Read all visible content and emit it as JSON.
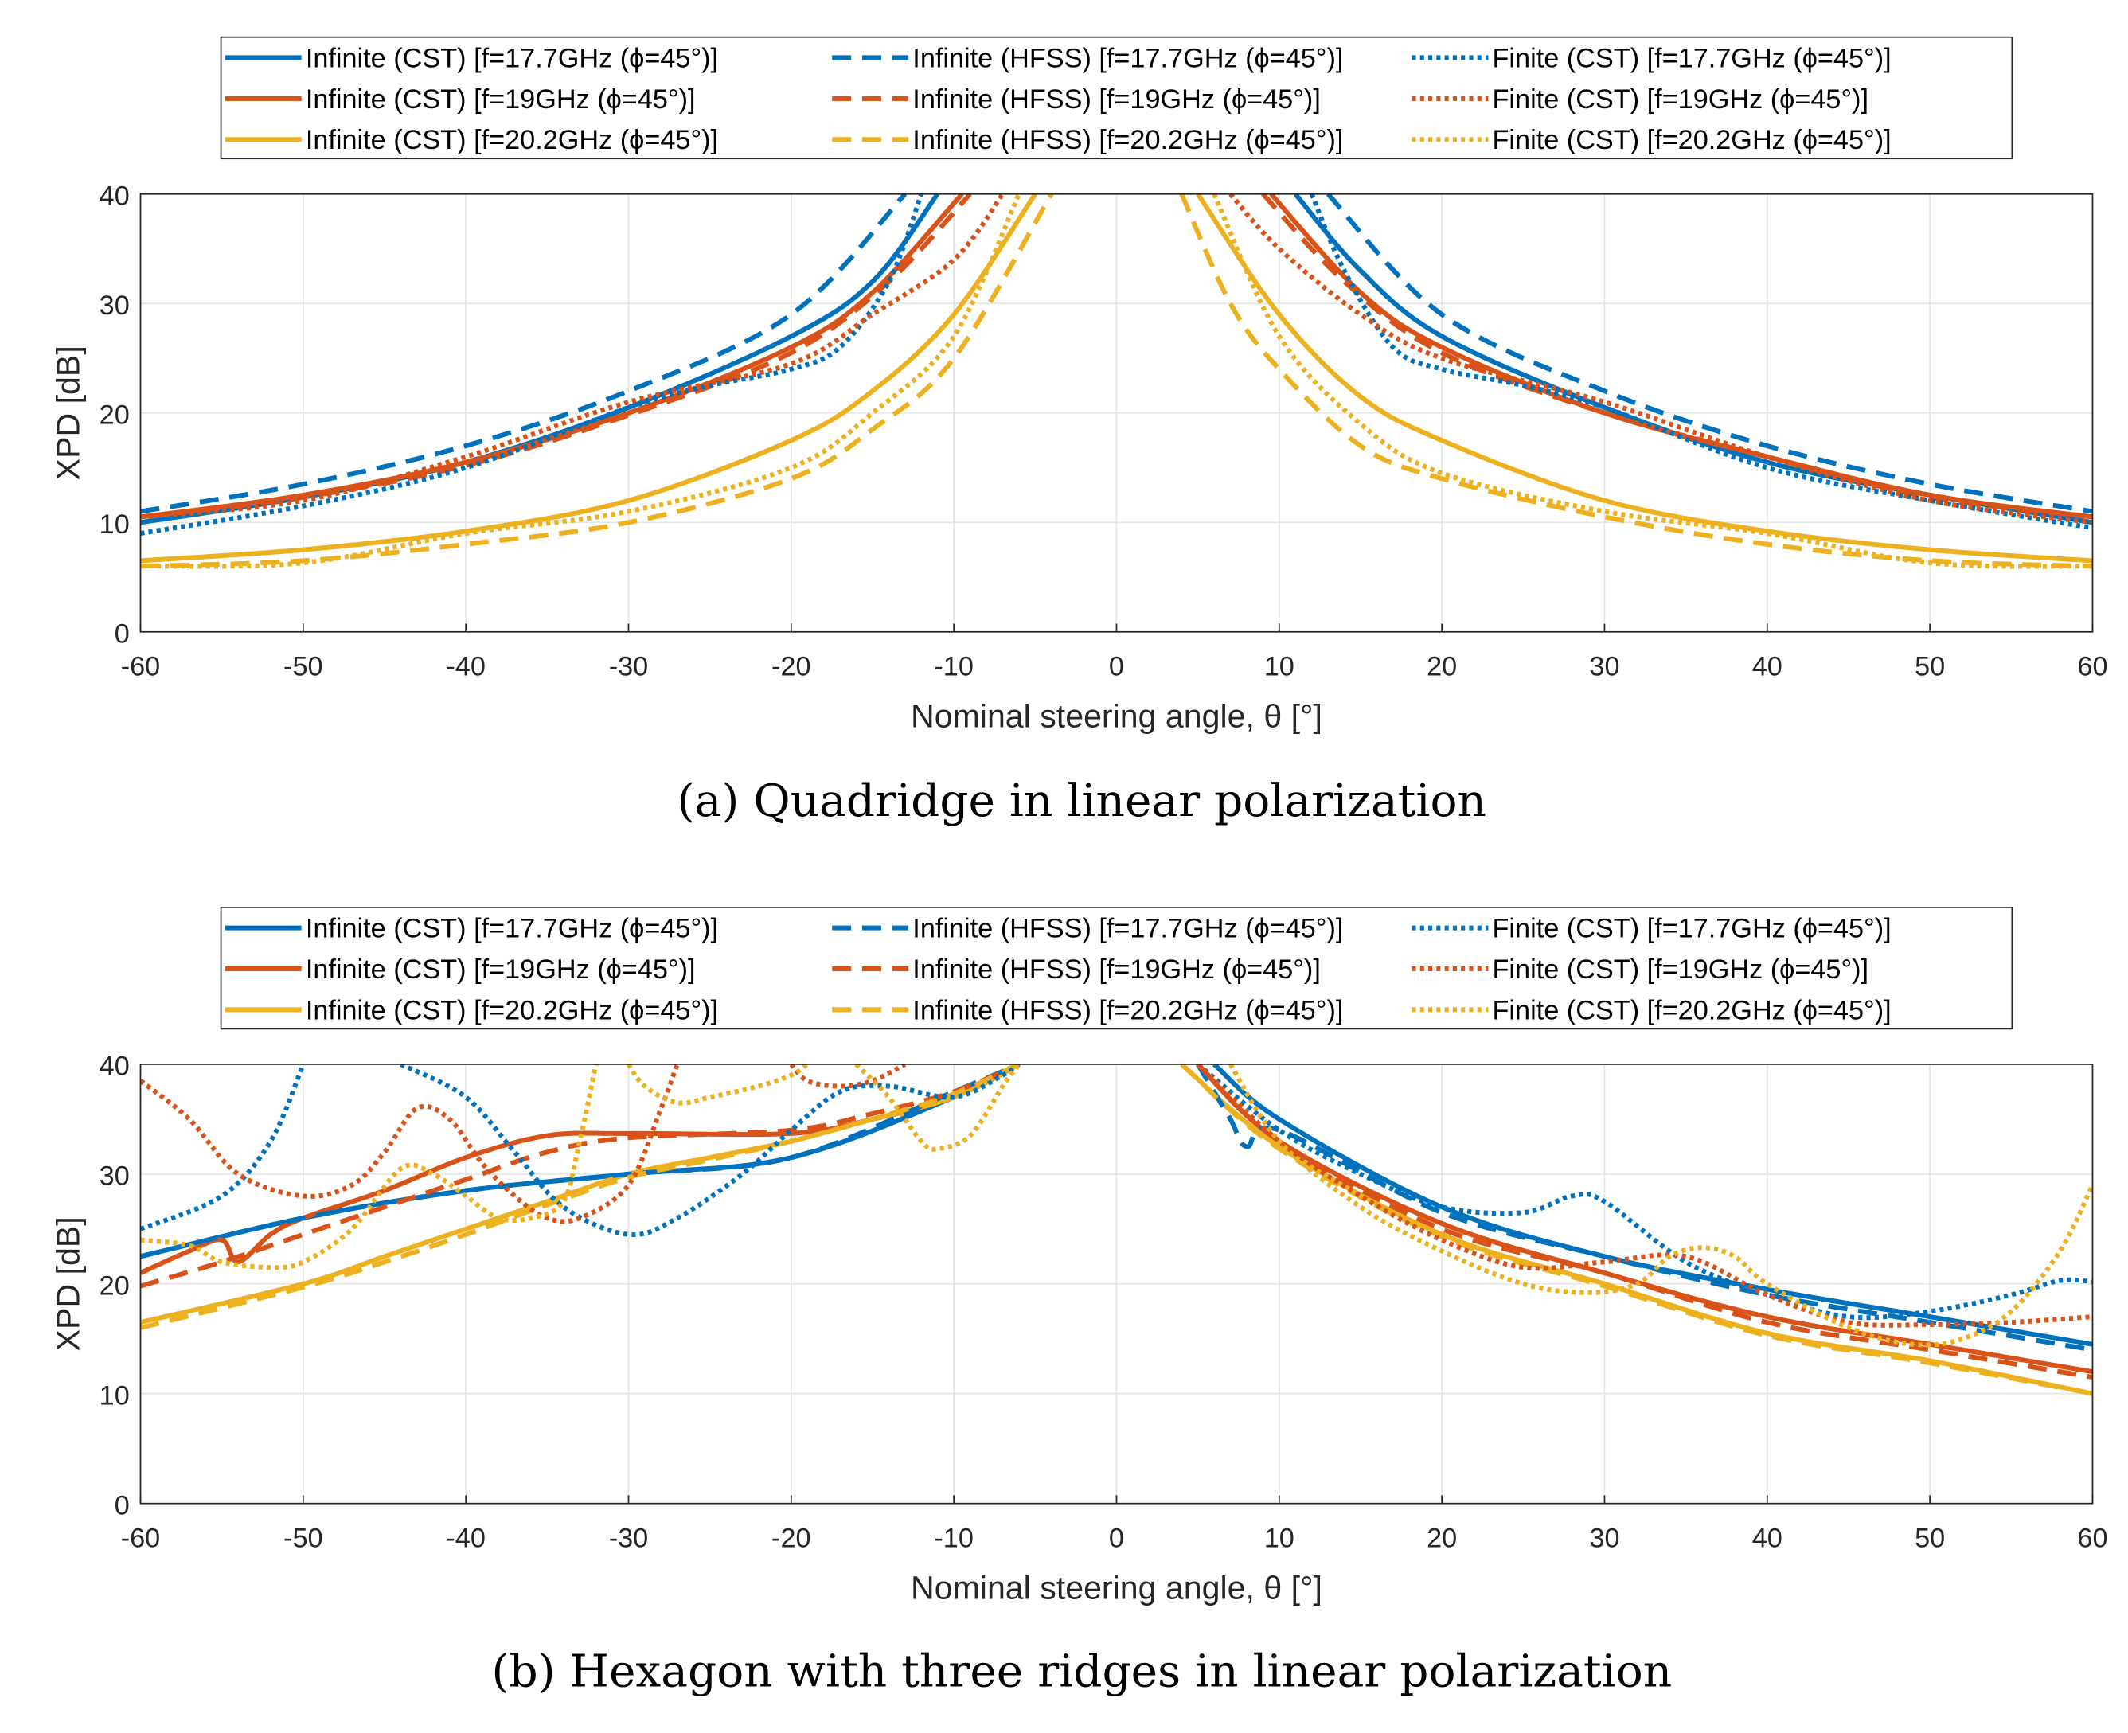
{
  "colors": {
    "f17_7": "#0072BD",
    "f19": "#D95319",
    "f20_2": "#EDB120"
  },
  "chart_data": [
    {
      "type": "line",
      "caption": "(a)  Quadridge in linear polarization",
      "xlabel": "Nominal steering angle, θ [°]",
      "ylabel": "XPD [dB]",
      "xlim": [
        -60,
        60
      ],
      "ylim": [
        0,
        40
      ],
      "xticks": [
        -60,
        -50,
        -40,
        -30,
        -20,
        -10,
        0,
        10,
        20,
        30,
        40,
        50,
        60
      ],
      "yticks": [
        0,
        10,
        20,
        30,
        40
      ],
      "grid": true,
      "legend_placement": "top",
      "series": [
        {
          "name": "Infinite (CST) [f=17.7GHz (ϕ=45°)]",
          "color": "#0072BD",
          "style": "solid",
          "x": [
            -60,
            -50,
            -40,
            -30,
            -20,
            -15,
            -11,
            null,
            11,
            15,
            20,
            30,
            40,
            50,
            60
          ],
          "y": [
            10,
            12.3,
            15.5,
            20.5,
            27,
            32,
            40,
            null,
            40,
            33,
            27,
            20.5,
            15.5,
            12.5,
            10
          ]
        },
        {
          "name": "Infinite (CST) [f=19GHz (ϕ=45°)]",
          "color": "#D95319",
          "style": "solid",
          "x": [
            -60,
            -50,
            -40,
            -30,
            -20,
            -15,
            -9.5,
            null,
            9.5,
            15,
            20,
            30,
            40,
            50,
            60
          ],
          "y": [
            10.5,
            12.5,
            15.5,
            20,
            26,
            31,
            40,
            null,
            40,
            31,
            26,
            20,
            16,
            12.5,
            10.5
          ]
        },
        {
          "name": "Infinite (CST) [f=20.2GHz (ϕ=45°)]",
          "color": "#EDB120",
          "style": "solid",
          "x": [
            -60,
            -50,
            -40,
            -30,
            -20,
            -15,
            -10,
            -5,
            null,
            5,
            10,
            15,
            20,
            30,
            40,
            50,
            60
          ],
          "y": [
            6.5,
            7.5,
            9.2,
            12,
            17.5,
            22,
            29,
            40,
            null,
            40,
            29,
            21.5,
            17.5,
            12,
            9.2,
            7.5,
            6.5
          ]
        },
        {
          "name": "Infinite (HFSS) [f=17.7GHz (ϕ=45°)]",
          "color": "#0072BD",
          "style": "dashed",
          "x": [
            -60,
            -50,
            -40,
            -30,
            -20,
            -13,
            null,
            13,
            20,
            30,
            40,
            50,
            60
          ],
          "y": [
            11,
            13.5,
            17,
            22,
            29,
            40,
            null,
            40,
            29,
            22,
            17,
            13.5,
            11
          ]
        },
        {
          "name": "Infinite (HFSS) [f=19GHz (ϕ=45°)]",
          "color": "#D95319",
          "style": "dashed",
          "x": [
            -60,
            -50,
            -40,
            -30,
            -20,
            -14,
            -9,
            null,
            9,
            14,
            20,
            30,
            40,
            50,
            60
          ],
          "y": [
            10.5,
            12.3,
            15.2,
            19.8,
            25.5,
            32,
            40,
            null,
            40,
            32,
            25.5,
            20,
            16,
            12.3,
            10.5
          ]
        },
        {
          "name": "Infinite (HFSS) [f=20.2GHz (ϕ=45°)]",
          "color": "#EDB120",
          "style": "dashed",
          "x": [
            -60,
            -50,
            -40,
            -30,
            -20,
            -15,
            -10,
            -4,
            null,
            4,
            7,
            10,
            15,
            20,
            30,
            40,
            50,
            60
          ],
          "y": [
            6,
            6.5,
            8,
            10,
            14,
            18.5,
            25,
            40,
            null,
            40,
            30,
            24,
            17,
            14,
            10.5,
            8,
            6.5,
            6
          ]
        },
        {
          "name": "Finite (CST) [f=17.7GHz (ϕ=45°)]",
          "color": "#0072BD",
          "style": "dotted",
          "x": [
            -60,
            -50,
            -40,
            -30,
            -25,
            -20,
            -17,
            -14,
            -12,
            null,
            12,
            14,
            17,
            20,
            25,
            30,
            40,
            50,
            60
          ],
          "y": [
            9,
            11.5,
            15,
            20.5,
            22.5,
            24,
            26,
            32,
            40,
            null,
            40,
            33,
            26,
            24,
            22.5,
            20.5,
            15,
            12,
            9.5
          ]
        },
        {
          "name": "Finite (CST) [f=19GHz (ϕ=45°)]",
          "color": "#D95319",
          "style": "dotted",
          "x": [
            -60,
            -50,
            -40,
            -30,
            -20,
            -15,
            -10,
            -7,
            null,
            7,
            10,
            15,
            20,
            30,
            40,
            50,
            60
          ],
          "y": [
            10.5,
            12,
            16,
            21,
            24.5,
            29,
            34,
            40,
            null,
            40,
            35,
            29,
            25,
            21,
            16,
            12,
            10
          ]
        },
        {
          "name": "Finite (CST) [f=20.2GHz (ϕ=45°)]",
          "color": "#EDB120",
          "style": "dotted",
          "x": [
            -60,
            -50,
            -40,
            -30,
            -20,
            -15,
            -10,
            -6,
            null,
            6,
            10,
            15,
            20,
            30,
            40,
            50,
            60
          ],
          "y": [
            6,
            6.3,
            9,
            11,
            15,
            20,
            27,
            40,
            null,
            40,
            27,
            19,
            14.5,
            11,
            9,
            6.3,
            6
          ]
        }
      ]
    },
    {
      "type": "line",
      "caption": "(b)  Hexagon with three ridges in linear polarization",
      "xlabel": "Nominal steering angle, θ [°]",
      "ylabel": "XPD [dB]",
      "xlim": [
        -60,
        60
      ],
      "ylim": [
        0,
        40
      ],
      "xticks": [
        -60,
        -50,
        -40,
        -30,
        -20,
        -10,
        0,
        10,
        20,
        30,
        40,
        50,
        60
      ],
      "yticks": [
        0,
        10,
        20,
        30,
        40
      ],
      "grid": true,
      "legend_placement": "top",
      "series": [
        {
          "name": "Infinite (CST) [f=17.7GHz (ϕ=45°)]",
          "color": "#0072BD",
          "style": "solid",
          "x": [
            -60,
            -50,
            -40,
            -30,
            -20,
            -10,
            -6,
            null,
            6,
            10,
            20,
            30,
            40,
            50,
            60
          ],
          "y": [
            22.5,
            26,
            28.5,
            30,
            31.5,
            37,
            40,
            null,
            40,
            35,
            27,
            22.5,
            19.5,
            17,
            14.5
          ]
        },
        {
          "name": "Infinite (CST) [f=19GHz (ϕ=45°)]",
          "color": "#D95319",
          "style": "solid",
          "x": [
            -60,
            -57,
            -55,
            -54,
            -52,
            -50,
            -45,
            -40,
            -35,
            -30,
            -20,
            -15,
            -10,
            -6,
            null,
            5,
            10,
            20,
            30,
            40,
            50,
            60
          ],
          "y": [
            21,
            23,
            24,
            22,
            24.5,
            26,
            28.5,
            31.5,
            33.5,
            33.7,
            33.7,
            35,
            37,
            40,
            null,
            40,
            33,
            25.5,
            21,
            17,
            14.5,
            12
          ]
        },
        {
          "name": "Infinite (CST) [f=20.2GHz (ϕ=45°)]",
          "color": "#EDB120",
          "style": "solid",
          "x": [
            -60,
            -50,
            -45,
            -42,
            -40,
            -35,
            -30,
            -25,
            -20,
            -15,
            -10,
            -6,
            null,
            4,
            10,
            20,
            30,
            40,
            50,
            60
          ],
          "y": [
            16.5,
            20,
            22.5,
            24,
            25,
            27.5,
            30,
            31.5,
            33,
            35,
            37,
            40,
            null,
            40,
            32.5,
            24.5,
            20,
            15.5,
            13,
            10
          ]
        },
        {
          "name": "Infinite (HFSS) [f=17.7GHz (ϕ=45°)]",
          "color": "#0072BD",
          "style": "dashed",
          "x": [
            -60,
            -50,
            -40,
            -30,
            -20,
            -10,
            -6,
            null,
            5,
            7,
            8,
            10,
            20,
            30,
            40,
            50,
            60
          ],
          "y": [
            22.5,
            26,
            28.5,
            30,
            31.5,
            37.5,
            40,
            null,
            40,
            35,
            32.5,
            34,
            26.5,
            22.5,
            19,
            16.5,
            14
          ]
        },
        {
          "name": "Infinite (HFSS) [f=19GHz (ϕ=45°)]",
          "color": "#D95319",
          "style": "dashed",
          "x": [
            -60,
            -55,
            -50,
            -45,
            -40,
            -35,
            -30,
            -20,
            -15,
            -10,
            -6,
            null,
            5,
            10,
            20,
            30,
            40,
            50,
            60
          ],
          "y": [
            19.8,
            22,
            24.5,
            27,
            29.5,
            32,
            33.3,
            34,
            35.5,
            37.5,
            40,
            null,
            40,
            33,
            25,
            21,
            16.5,
            14,
            11.5
          ]
        },
        {
          "name": "Infinite (HFSS) [f=20.2GHz (ϕ=45°)]",
          "color": "#EDB120",
          "style": "dashed",
          "x": [
            -60,
            -50,
            -45,
            -40,
            -35,
            -30,
            -25,
            -20,
            -15,
            -10,
            -6,
            null,
            4,
            10,
            20,
            30,
            40,
            50,
            60
          ],
          "y": [
            16,
            19.7,
            22,
            24.5,
            27.2,
            29.7,
            31.3,
            33,
            35,
            37.3,
            40,
            null,
            40,
            32.3,
            24.3,
            19.8,
            15.3,
            12.8,
            10
          ]
        },
        {
          "name": "Finite (CST) [f=17.7GHz (ϕ=45°)]",
          "color": "#0072BD",
          "style": "dotted",
          "x": [
            -60,
            -55,
            -52,
            -50,
            null,
            -44,
            -40,
            -37,
            -34,
            -30,
            -27,
            -23,
            -20,
            -17,
            -14,
            -10,
            -7,
            -6,
            null,
            5,
            10,
            15,
            20,
            25,
            28,
            30,
            35,
            40,
            45,
            50,
            55,
            58,
            60
          ],
          "y": [
            25,
            28,
            33,
            40,
            null,
            40,
            37,
            32,
            27,
            24.5,
            26,
            30,
            34,
            37.5,
            38,
            37,
            39,
            40,
            null,
            40,
            34,
            30,
            27,
            26.5,
            28,
            27.5,
            22,
            19,
            17,
            17.5,
            19,
            20.3,
            20.2
          ]
        },
        {
          "name": "Finite (CST) [f=19GHz (ϕ=45°)]",
          "color": "#D95319",
          "style": "dotted",
          "x": [
            -60,
            -57,
            -54,
            -50,
            -47,
            -45,
            -43,
            -41,
            -39,
            -37,
            -35,
            -33,
            -30,
            -28,
            -27,
            null,
            -20,
            -19,
            -17,
            -15,
            -13,
            null,
            5,
            10,
            15,
            20,
            25,
            30,
            35,
            40,
            45,
            50,
            55,
            60
          ],
          "y": [
            38.5,
            35,
            30,
            28,
            29,
            32,
            36,
            35,
            31,
            28,
            26,
            26,
            29,
            36,
            40,
            null,
            40,
            38.5,
            38,
            38.5,
            40,
            null,
            40,
            33,
            28,
            24,
            21.5,
            22,
            22.5,
            19,
            16.5,
            16.3,
            16.5,
            17
          ]
        },
        {
          "name": "Finite (CST) [f=20.2GHz (ϕ=45°)]",
          "color": "#EDB120",
          "style": "dotted",
          "x": [
            -60,
            -57,
            -55,
            -52,
            -50,
            -47,
            -44,
            -42,
            -40,
            -38,
            -36,
            -34,
            -33,
            -32,
            null,
            -30,
            -29,
            -27,
            -25,
            -22,
            -20,
            -19,
            null,
            -16,
            -14,
            -12,
            -11,
            -9,
            -7,
            -6,
            null,
            7,
            10,
            15,
            20,
            25,
            29,
            32,
            34,
            36,
            38,
            40,
            45,
            49,
            52,
            55,
            58,
            60
          ],
          "y": [
            24,
            23.5,
            22,
            21.5,
            22,
            25,
            30.5,
            30,
            28,
            26,
            26,
            27.5,
            33,
            40,
            null,
            40,
            38,
            36.5,
            37,
            38,
            39,
            40,
            null,
            40,
            37,
            33,
            32.3,
            33.5,
            38,
            40,
            null,
            40,
            33,
            27,
            23,
            20,
            19.2,
            20,
            22.5,
            23.3,
            22.5,
            20,
            16,
            14.5,
            15,
            17.5,
            23,
            29
          ]
        }
      ]
    }
  ]
}
